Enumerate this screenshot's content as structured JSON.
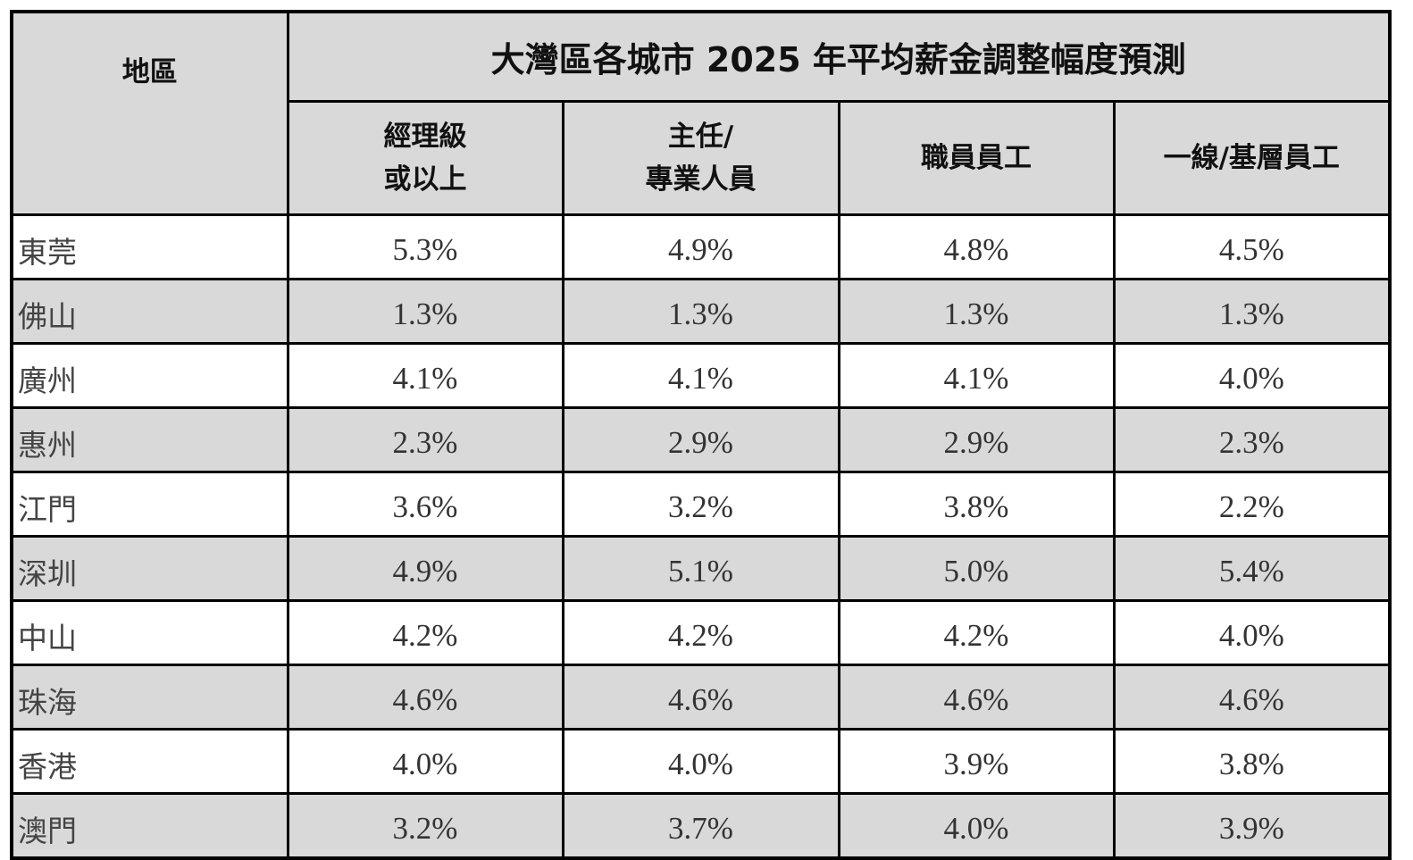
{
  "table": {
    "title": "大灣區各城市 2025 年平均薪金調整幅度預測",
    "region_header": "地區",
    "columns": [
      [
        "經理級",
        "或以上"
      ],
      [
        "主任/",
        "專業人員"
      ],
      [
        "職員員工"
      ],
      [
        "一線/基層員工"
      ]
    ],
    "rows": [
      {
        "region": "東莞",
        "values": [
          "5.3%",
          "4.9%",
          "4.8%",
          "4.5%"
        ]
      },
      {
        "region": "佛山",
        "values": [
          "1.3%",
          "1.3%",
          "1.3%",
          "1.3%"
        ]
      },
      {
        "region": "廣州",
        "values": [
          "4.1%",
          "4.1%",
          "4.1%",
          "4.0%"
        ]
      },
      {
        "region": "惠州",
        "values": [
          "2.3%",
          "2.9%",
          "2.9%",
          "2.3%"
        ]
      },
      {
        "region": "江門",
        "values": [
          "3.6%",
          "3.2%",
          "3.8%",
          "2.2%"
        ]
      },
      {
        "region": "深圳",
        "values": [
          "4.9%",
          "5.1%",
          "5.0%",
          "5.4%"
        ]
      },
      {
        "region": "中山",
        "values": [
          "4.2%",
          "4.2%",
          "4.2%",
          "4.0%"
        ]
      },
      {
        "region": "珠海",
        "values": [
          "4.6%",
          "4.6%",
          "4.6%",
          "4.6%"
        ]
      },
      {
        "region": "香港",
        "values": [
          "4.0%",
          "4.0%",
          "3.9%",
          "3.8%"
        ]
      },
      {
        "region": "澳門",
        "values": [
          "3.2%",
          "3.7%",
          "4.0%",
          "3.9%"
        ]
      }
    ]
  }
}
